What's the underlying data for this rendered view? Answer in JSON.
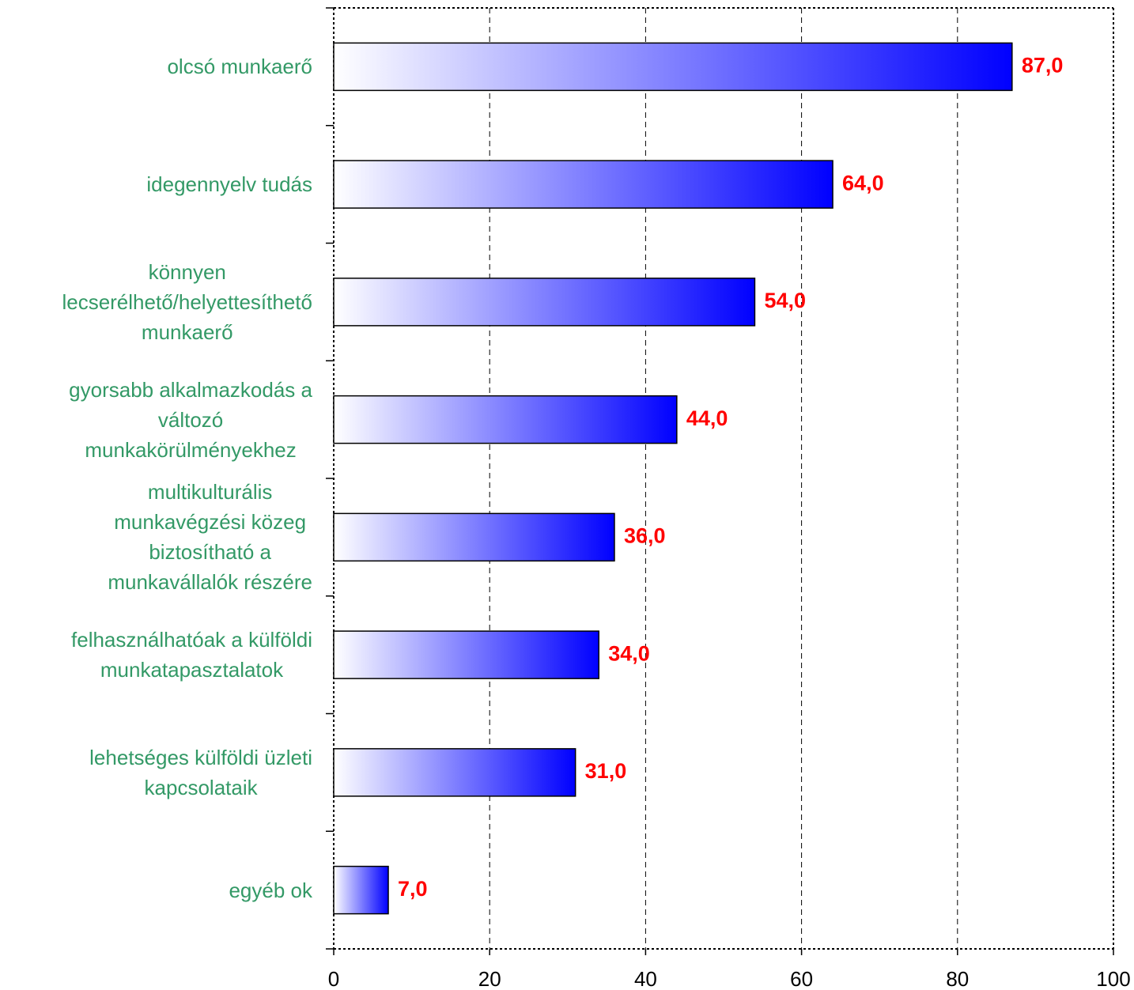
{
  "chart_data": {
    "type": "bar",
    "orientation": "horizontal",
    "categories": [
      "olcsó munkaerő",
      "idegennyelv tudás",
      "könnyen\nlecserélhető/helyettesíthető\nmunkaerő",
      "gyorsabb alkalmazkodás a\nváltozó\nmunkakörülményekhez",
      "multikulturális\nmunkavégzési közeg\nbiztosítható a\nmunkavállalók részére",
      "felhasználhatóak a külföldi\nmunkatapasztalatok",
      "lehetséges külföldi üzleti\nkapcsolataik",
      "egyéb ok"
    ],
    "values": [
      87,
      64,
      54,
      44,
      36,
      34,
      31,
      7
    ],
    "value_labels": [
      "87,0",
      "64,0",
      "54,0",
      "44,0",
      "36,0",
      "34,0",
      "31,0",
      "7,0"
    ],
    "color": "#0000ff",
    "xlim": [
      0,
      100
    ],
    "xticks": [
      0,
      20,
      40,
      60,
      80,
      100
    ],
    "grid": true
  }
}
